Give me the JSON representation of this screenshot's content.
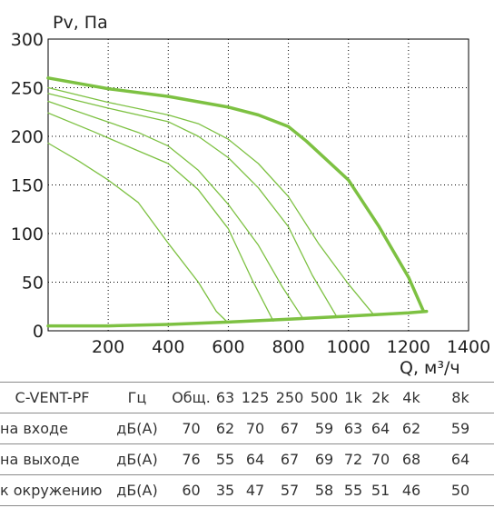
{
  "chart_data": {
    "type": "line",
    "ylabel": "Pv, Па",
    "xlabel": "Q, м³/ч",
    "xlim": [
      0,
      1400
    ],
    "ylim": [
      0,
      300
    ],
    "xticks": [
      200,
      400,
      600,
      800,
      1000,
      1200,
      1400
    ],
    "yticks": [
      0,
      50,
      100,
      150,
      200,
      250,
      300
    ],
    "grid": true,
    "colors": {
      "max_curve": "#7dc142",
      "speed_curves": "#7dc142",
      "grid": "#000000"
    },
    "series": [
      {
        "x": [
          0,
          200,
          400,
          600,
          700,
          800,
          860,
          1000,
          1100,
          1200,
          1250
        ],
        "y": [
          260,
          249,
          241,
          230,
          222,
          210,
          195,
          155,
          108,
          55,
          20
        ]
      },
      {
        "x": [
          0,
          200,
          400,
          500,
          600,
          700,
          800,
          900,
          1000,
          1080
        ],
        "y": [
          250,
          235,
          222,
          213,
          197,
          172,
          138,
          90,
          48,
          18
        ]
      },
      {
        "x": [
          0,
          200,
          400,
          500,
          600,
          700,
          800,
          880,
          960
        ],
        "y": [
          244,
          229,
          215,
          200,
          178,
          147,
          107,
          57,
          15
        ]
      },
      {
        "x": [
          0,
          150,
          300,
          400,
          500,
          600,
          700,
          780,
          850
        ],
        "y": [
          236,
          220,
          204,
          190,
          165,
          130,
          88,
          45,
          12
        ]
      },
      {
        "x": [
          0,
          150,
          300,
          400,
          500,
          600,
          680,
          750
        ],
        "y": [
          224,
          205,
          185,
          172,
          145,
          105,
          52,
          10
        ]
      },
      {
        "x": [
          0,
          100,
          200,
          300,
          400,
          500,
          560,
          600
        ],
        "y": [
          193,
          175,
          155,
          132,
          90,
          50,
          20,
          8
        ]
      },
      {
        "x": [
          0,
          200,
          400,
          600,
          800,
          1000,
          1200,
          1260
        ],
        "y": [
          5,
          5,
          6.5,
          9,
          12,
          15,
          18.5,
          20
        ]
      }
    ]
  },
  "table": {
    "header": [
      "C-VENT-PF",
      "Гц",
      "Общ.",
      "63",
      "125",
      "250",
      "500",
      "1k",
      "2k",
      "4k",
      "8k"
    ],
    "rows": [
      {
        "label": "на входе",
        "unit": "дБ(А)",
        "values": [
          "70",
          "62",
          "70",
          "67",
          "59",
          "63",
          "64",
          "62",
          "59"
        ]
      },
      {
        "label": "на выходе",
        "unit": "дБ(А)",
        "values": [
          "76",
          "55",
          "64",
          "67",
          "69",
          "72",
          "70",
          "68",
          "64"
        ]
      },
      {
        "label": "к окружению",
        "unit": "дБ(А)",
        "values": [
          "60",
          "35",
          "47",
          "57",
          "58",
          "55",
          "51",
          "46",
          "50"
        ]
      }
    ]
  }
}
